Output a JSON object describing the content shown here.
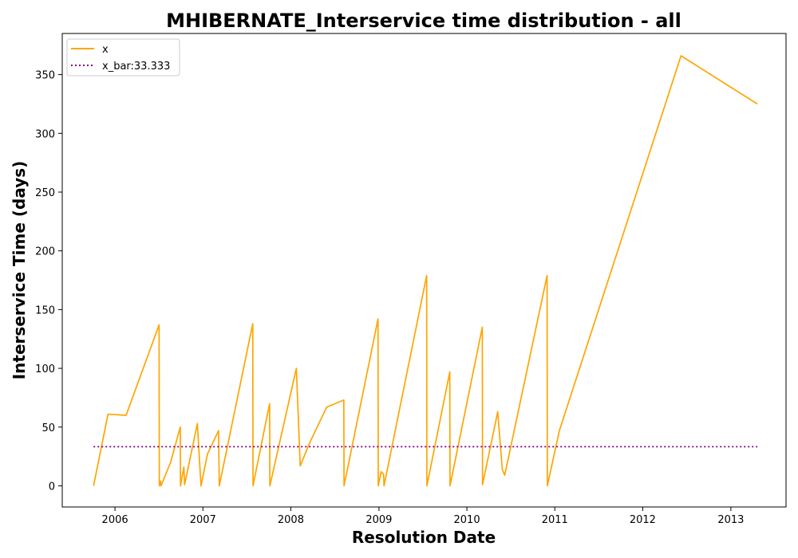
{
  "chart_data": {
    "type": "line",
    "title": "MHIBERNATE_Interservice time distribution - all",
    "xlabel": "Resolution Date",
    "ylabel": "Interservice Time (days)",
    "x_ticks": [
      "2006",
      "2007",
      "2008",
      "2009",
      "2010",
      "2011",
      "2012",
      "2013"
    ],
    "y_ticks": [
      "0",
      "50",
      "100",
      "150",
      "200",
      "250",
      "300",
      "350"
    ],
    "xlim": [
      "2005-05-27",
      "2013-08-18"
    ],
    "ylim": [
      -18,
      385
    ],
    "grid": false,
    "legend_position": "top-left",
    "series": [
      {
        "name": "x",
        "color": "#ffa500",
        "style": "solid",
        "points": [
          [
            "2005-10-04",
            0
          ],
          [
            "2005-12-03",
            61
          ],
          [
            "2006-02-16",
            60
          ],
          [
            "2006-07-03",
            137
          ],
          [
            "2006-07-04",
            0
          ],
          [
            "2006-07-09",
            4
          ],
          [
            "2006-07-11",
            0
          ],
          [
            "2006-08-20",
            20
          ],
          [
            "2006-09-29",
            50
          ],
          [
            "2006-09-30",
            0
          ],
          [
            "2006-10-14",
            16
          ],
          [
            "2006-10-17",
            1
          ],
          [
            "2006-12-09",
            53
          ],
          [
            "2006-12-24",
            0
          ],
          [
            "2007-01-20",
            27
          ],
          [
            "2007-03-07",
            47
          ],
          [
            "2007-03-10",
            0
          ],
          [
            "2007-07-27",
            138
          ],
          [
            "2007-07-28",
            0
          ],
          [
            "2007-10-05",
            70
          ],
          [
            "2007-10-06",
            0
          ],
          [
            "2008-01-24",
            100
          ],
          [
            "2008-02-09",
            17
          ],
          [
            "2008-03-20",
            37
          ],
          [
            "2008-05-29",
            67
          ],
          [
            "2008-08-08",
            73
          ],
          [
            "2008-08-09",
            0
          ],
          [
            "2008-12-28",
            142
          ],
          [
            "2008-12-29",
            0
          ],
          [
            "2009-01-10",
            12
          ],
          [
            "2009-01-20",
            10
          ],
          [
            "2009-01-22",
            0
          ],
          [
            "2009-07-18",
            179
          ],
          [
            "2009-07-19",
            0
          ],
          [
            "2009-10-22",
            97
          ],
          [
            "2009-10-23",
            0
          ],
          [
            "2010-03-06",
            135
          ],
          [
            "2010-03-07",
            1
          ],
          [
            "2010-05-09",
            63
          ],
          [
            "2010-05-28",
            14
          ],
          [
            "2010-06-07",
            9
          ],
          [
            "2010-11-30",
            179
          ],
          [
            "2010-12-01",
            0
          ],
          [
            "2011-01-20",
            47
          ],
          [
            "2012-06-08",
            366
          ],
          [
            "2013-04-21",
            325
          ]
        ]
      },
      {
        "name": "x_bar:33.333",
        "color": "#800080",
        "style": "dotted",
        "points": [
          [
            "2005-10-04",
            33.333
          ],
          [
            "2013-04-21",
            33.333
          ]
        ]
      }
    ]
  }
}
